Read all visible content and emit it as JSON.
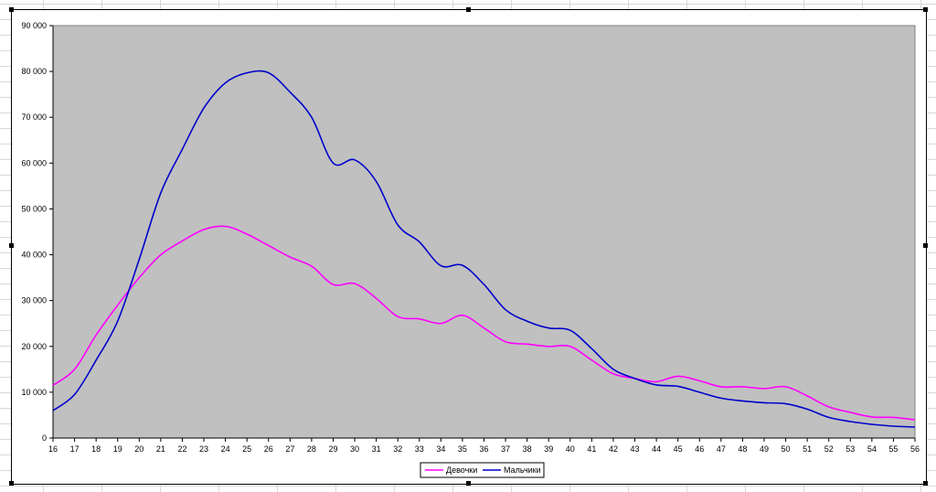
{
  "chart_data": {
    "type": "line",
    "title": "",
    "xlabel": "",
    "ylabel": "",
    "x": [
      16,
      17,
      18,
      19,
      20,
      21,
      22,
      23,
      24,
      25,
      26,
      27,
      28,
      29,
      30,
      31,
      32,
      33,
      34,
      35,
      36,
      37,
      38,
      39,
      40,
      41,
      42,
      43,
      44,
      45,
      46,
      47,
      48,
      49,
      50,
      51,
      52,
      53,
      54,
      55,
      56
    ],
    "ylim": [
      0,
      90000
    ],
    "yticks": [
      0,
      10000,
      20000,
      30000,
      40000,
      50000,
      60000,
      70000,
      80000,
      90000
    ],
    "ytick_labels": [
      "0",
      "10 000",
      "20 000",
      "30 000",
      "40 000",
      "50 000",
      "60 000",
      "70 000",
      "80 000",
      "90 000"
    ],
    "grid": false,
    "plot_background": "#c0c0c0",
    "legend_position": "bottom",
    "series": [
      {
        "name": "Девочки",
        "color": "#ff00ff",
        "values": [
          11500,
          15000,
          22500,
          29000,
          35000,
          40000,
          43000,
          45500,
          46200,
          44500,
          42000,
          39500,
          37500,
          33500,
          33700,
          30500,
          26500,
          26000,
          25000,
          26800,
          24000,
          21000,
          20500,
          20000,
          20000,
          17000,
          14000,
          13000,
          12300,
          13500,
          12500,
          11200,
          11200,
          10800,
          11200,
          9200,
          6800,
          5600,
          4600,
          4500,
          4000
        ]
      },
      {
        "name": "Мальчики",
        "color": "#0000cc",
        "values": [
          6000,
          9500,
          17000,
          25500,
          39000,
          53500,
          63000,
          72000,
          77500,
          79700,
          79700,
          75500,
          70000,
          60000,
          60700,
          56000,
          46500,
          42800,
          37600,
          37700,
          33500,
          28000,
          25500,
          24000,
          23500,
          19500,
          15000,
          13000,
          11600,
          11300,
          10000,
          8700,
          8100,
          7700,
          7500,
          6300,
          4500,
          3600,
          3000,
          2600,
          2400
        ]
      }
    ]
  }
}
